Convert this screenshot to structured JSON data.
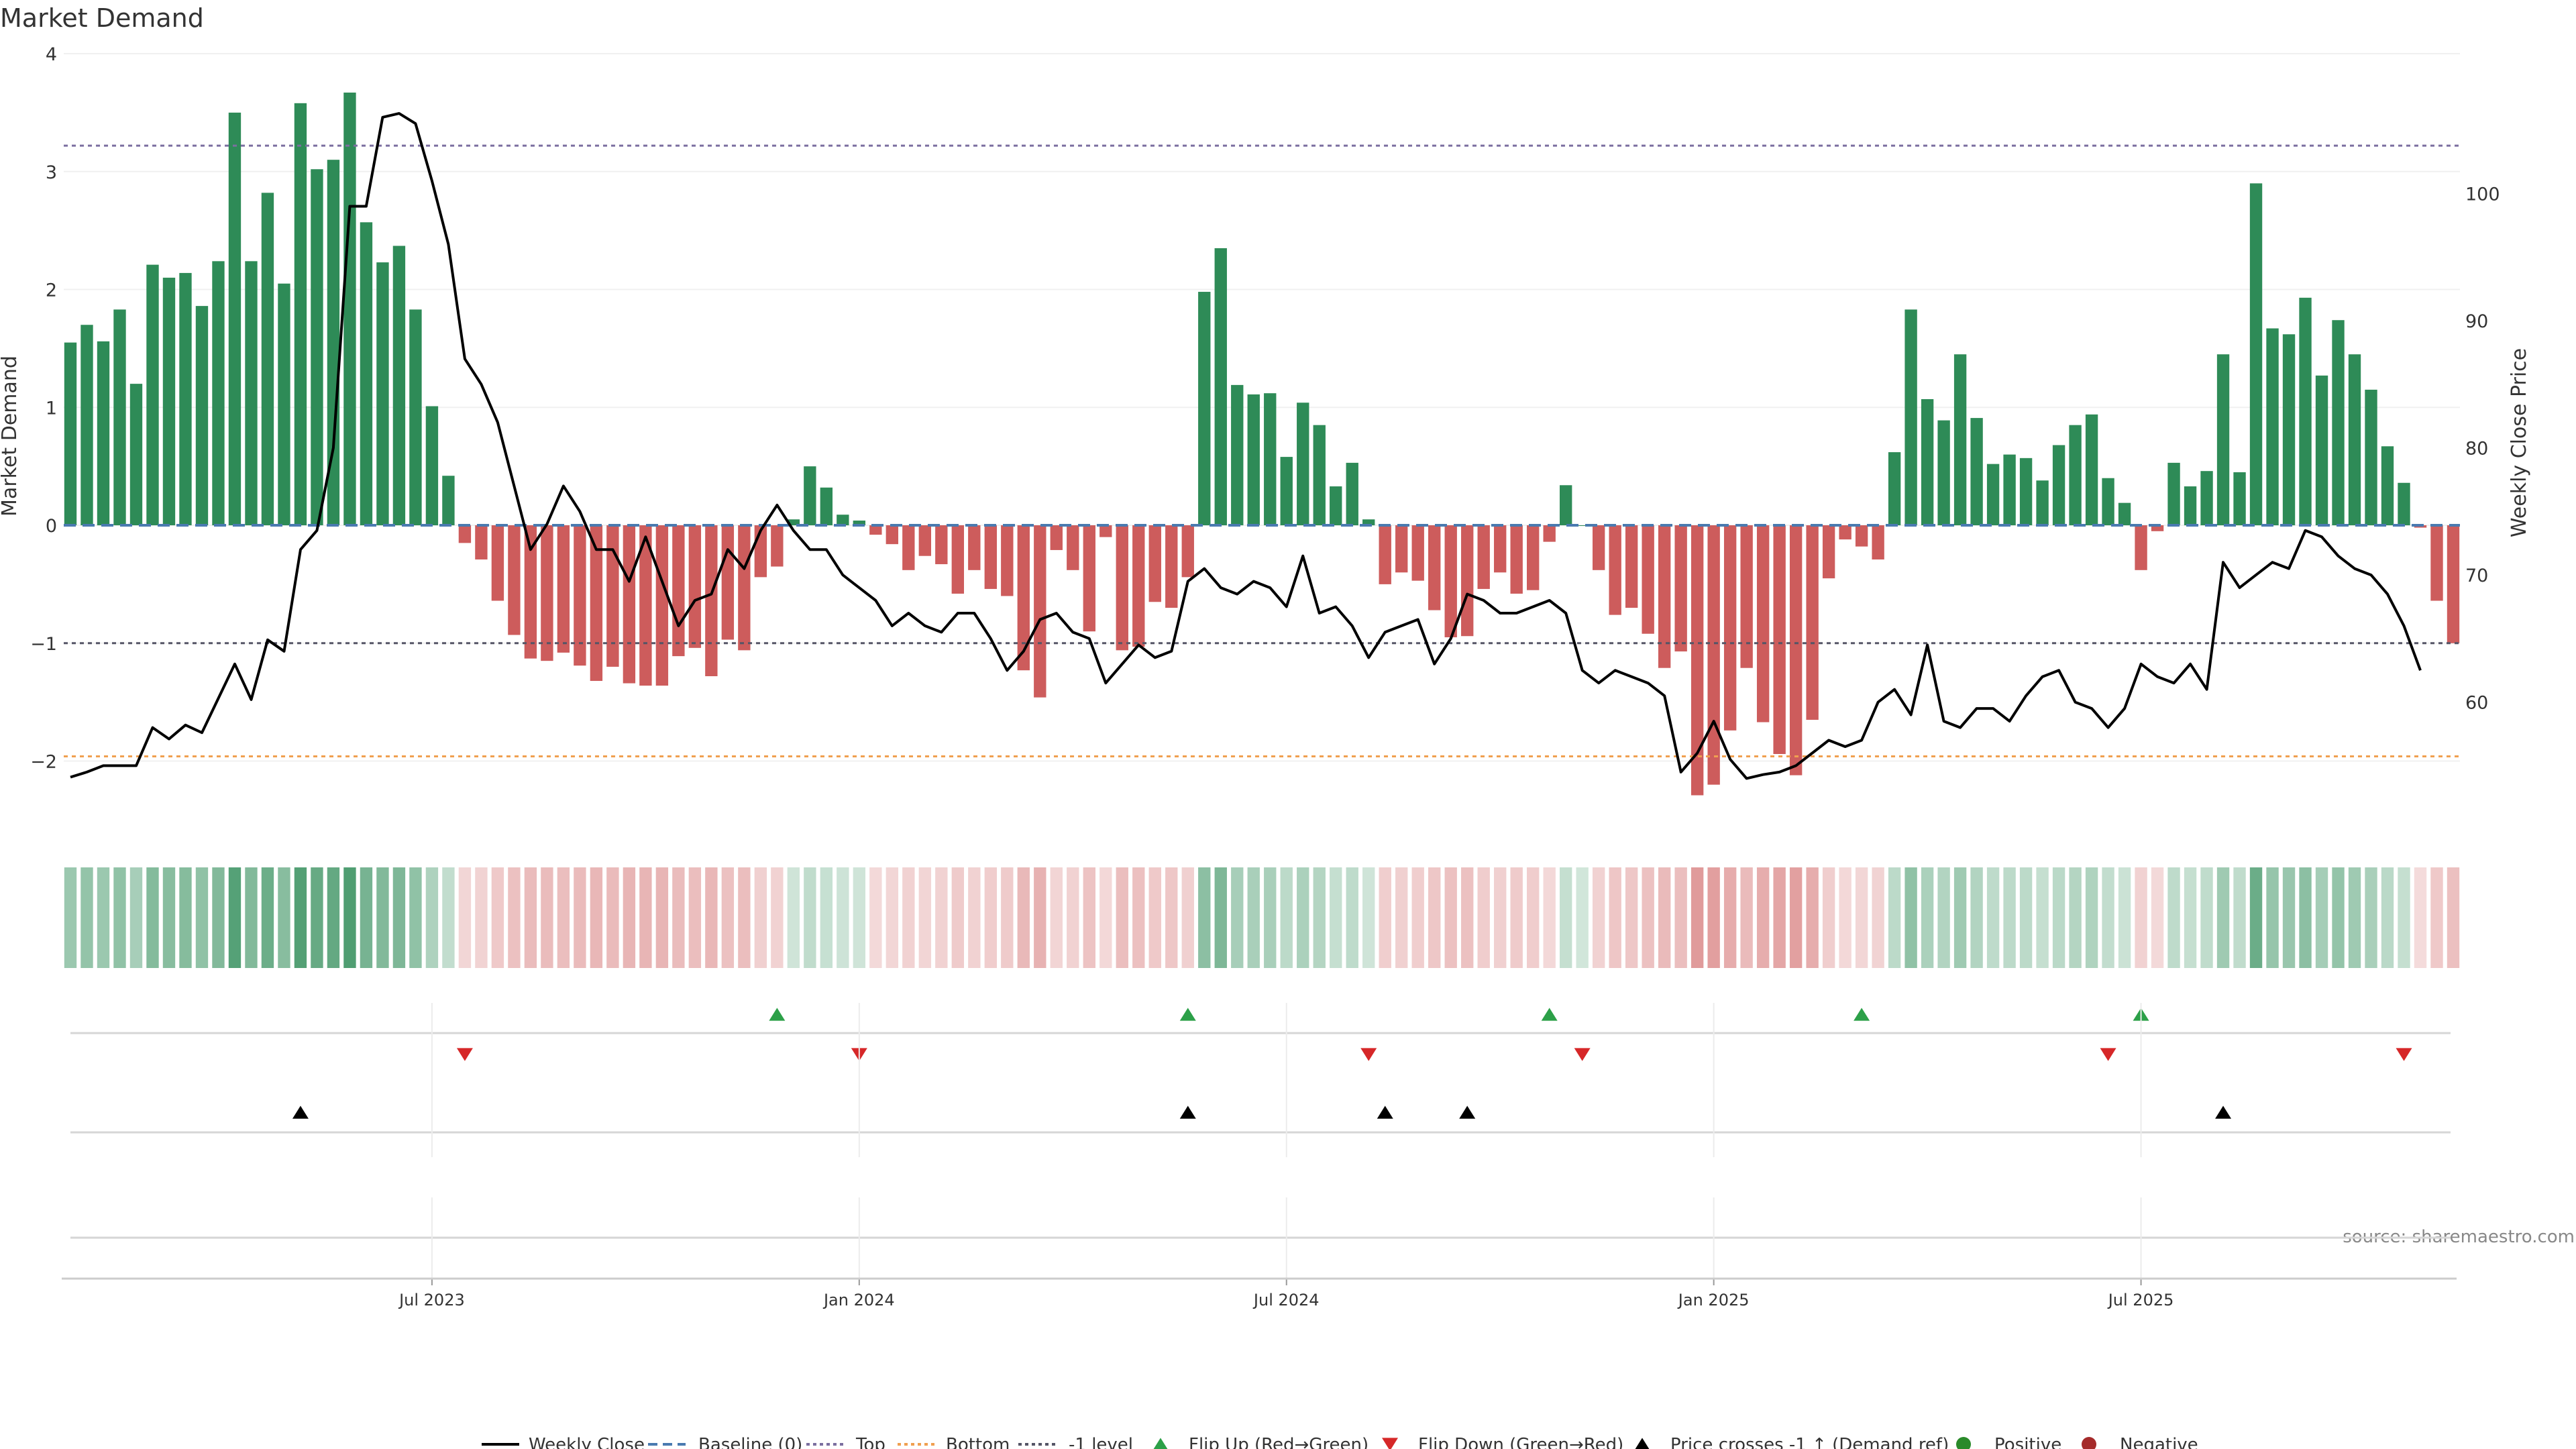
{
  "page_title": "Market Demand",
  "source_label": "source: sharemaestro.com",
  "chart_data": {
    "type": "bar",
    "title": "Market Demand",
    "ylabel": "Market Demand",
    "y2label": "Weekly Close Price",
    "ylim": [
      -2.6,
      4.0
    ],
    "y2lim": [
      49.8,
      111.0
    ],
    "yticks": [
      -2,
      -1,
      0,
      1,
      2,
      3,
      4
    ],
    "yticklabels": [
      "−2",
      "−1",
      "0",
      "1",
      "2",
      "3",
      "4"
    ],
    "y2ticks": [
      60,
      70,
      80,
      90,
      100
    ],
    "x_dates": [
      "Jul 2023",
      "Jan 2024",
      "Jul 2024",
      "Jan 2025",
      "Jul 2025"
    ],
    "x_date_index": [
      22,
      48,
      74,
      100,
      126
    ],
    "levels": {
      "top": 3.22,
      "bottom": -1.96,
      "minus1": -1.0,
      "baseline": 0
    },
    "colors": {
      "positive": "#2e8b57",
      "negative": "#cd5c5c",
      "price": "#000000",
      "top": "#7b6fa0",
      "bottom": "#f0a050",
      "minus1": "#555566",
      "baseline": "#4a7ab0",
      "flip_up": "#2ca048",
      "flip_down": "#d62728",
      "cross": "#000000",
      "legend_pos": "#2a8a2a",
      "legend_neg": "#a52a2a"
    },
    "demand": [
      1.55,
      1.7,
      1.56,
      1.83,
      1.2,
      2.21,
      2.1,
      2.14,
      1.86,
      2.24,
      3.5,
      2.24,
      2.82,
      2.05,
      3.58,
      3.02,
      3.1,
      3.67,
      2.57,
      2.23,
      2.37,
      1.83,
      1.01,
      0.42,
      -0.15,
      -0.29,
      -0.64,
      -0.93,
      -1.13,
      -1.15,
      -1.08,
      -1.19,
      -1.32,
      -1.2,
      -1.34,
      -1.36,
      -1.36,
      -1.11,
      -1.04,
      -1.28,
      -0.97,
      -1.06,
      -0.44,
      -0.35,
      0.05,
      0.5,
      0.32,
      0.09,
      0.04,
      -0.08,
      -0.16,
      -0.38,
      -0.26,
      -0.33,
      -0.58,
      -0.38,
      -0.54,
      -0.6,
      -1.23,
      -1.46,
      -0.21,
      -0.38,
      -0.9,
      -0.1,
      -1.06,
      -1.03,
      -0.65,
      -0.7,
      -0.44,
      1.98,
      2.35,
      1.19,
      1.11,
      1.12,
      0.58,
      1.04,
      0.85,
      0.33,
      0.53,
      0.05,
      -0.5,
      -0.4,
      -0.47,
      -0.72,
      -0.95,
      -0.94,
      -0.54,
      -0.4,
      -0.58,
      -0.55,
      -0.14,
      0.34,
      0.0,
      -0.38,
      -0.76,
      -0.7,
      -0.92,
      -1.21,
      -1.07,
      -2.29,
      -2.2,
      -1.74,
      -1.21,
      -1.67,
      -1.94,
      -2.12,
      -1.65,
      -0.45,
      -0.12,
      -0.18,
      -0.29,
      0.62,
      1.83,
      1.07,
      0.89,
      1.45,
      0.91,
      0.52,
      0.6,
      0.57,
      0.38,
      0.68,
      0.85,
      0.94,
      0.4,
      0.19,
      -0.38,
      -0.05,
      0.53,
      0.33,
      0.46,
      1.45,
      0.45,
      2.9,
      1.67,
      1.62,
      1.93,
      1.27,
      1.74,
      1.45,
      1.15,
      0.67,
      0.36,
      -0.02,
      -0.64,
      -1.0
    ],
    "price": [
      54.1,
      54.5,
      55.0,
      55.0,
      55.0,
      58.0,
      57.1,
      58.2,
      57.6,
      60.3,
      63.0,
      60.2,
      64.9,
      64.0,
      72.0,
      73.5,
      80.0,
      99.0,
      99.0,
      106.0,
      106.3,
      105.5,
      101.0,
      96.0,
      87.0,
      85.0,
      82.0,
      77.0,
      72.0,
      74.0,
      77.0,
      75.0,
      72.0,
      72.0,
      69.5,
      73.0,
      69.5,
      66.0,
      68.0,
      68.5,
      72.0,
      70.5,
      73.5,
      75.5,
      73.5,
      72.0,
      72.0,
      70.0,
      69.0,
      68.0,
      66.0,
      67.0,
      66.0,
      65.5,
      67.0,
      67.0,
      65.0,
      62.5,
      64.0,
      66.5,
      67.0,
      65.5,
      65.0,
      61.5,
      63.0,
      64.5,
      63.5,
      64.0,
      69.5,
      70.5,
      69.0,
      68.5,
      69.5,
      69.0,
      67.5,
      71.5,
      67.0,
      67.5,
      66.0,
      63.5,
      65.5,
      66.0,
      66.5,
      63.0,
      65.0,
      68.5,
      68.0,
      67.0,
      67.0,
      67.5,
      68.0,
      67.0,
      62.5,
      61.5,
      62.5,
      62.0,
      61.5,
      60.5,
      54.5,
      56.0,
      58.5,
      55.5,
      54.0,
      54.3,
      54.5,
      55.0,
      56.0,
      57.0,
      56.5,
      57.0,
      60.0,
      61.0,
      59.0,
      64.5,
      58.5,
      58.0,
      59.5,
      59.5,
      58.5,
      60.5,
      62.0,
      62.5,
      60.0,
      59.5,
      58.0,
      59.5,
      63.0,
      62.0,
      61.5,
      63.0,
      61.0,
      71.0,
      69.0,
      70.0,
      71.0,
      70.5,
      73.5,
      73.0,
      71.5,
      70.5,
      70.0,
      68.5,
      66.0,
      62.5
    ],
    "flip_up_index": [
      43,
      68,
      90,
      109,
      126
    ],
    "flip_down_index": [
      24,
      48,
      79,
      92,
      124,
      142
    ],
    "cross_index": [
      14,
      68,
      80,
      85,
      131
    ],
    "legend": [
      "Weekly Close",
      "Baseline (0)",
      "Top",
      "Bottom",
      "-1 level",
      "Flip Up (Red→Green)",
      "Flip Down (Green→Red)",
      "Price crosses -1 ↑ (Demand ref)",
      "Positive",
      "Negative"
    ]
  }
}
